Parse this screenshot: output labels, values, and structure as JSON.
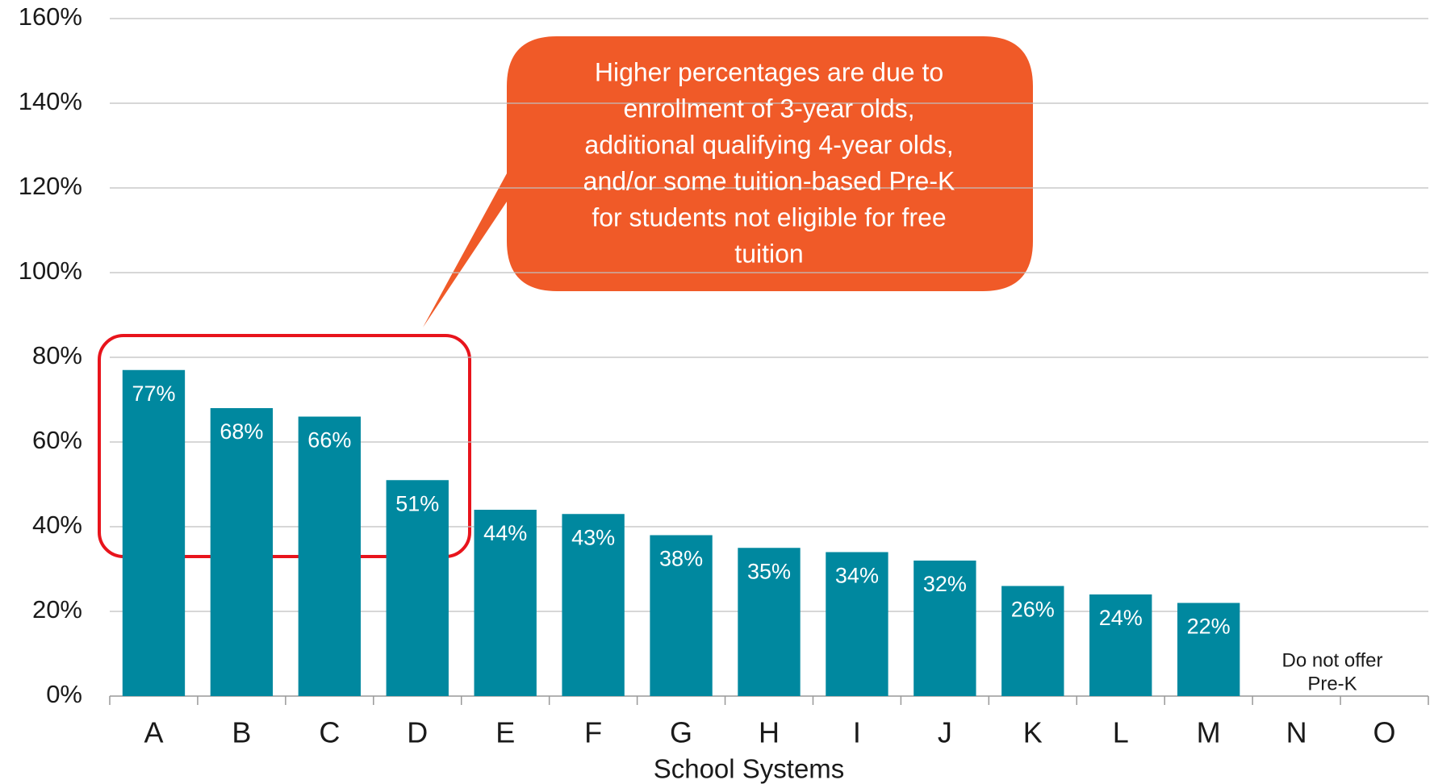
{
  "chart_data": {
    "type": "bar",
    "categories": [
      "A",
      "B",
      "C",
      "D",
      "E",
      "F",
      "G",
      "H",
      "I",
      "J",
      "K",
      "L",
      "M",
      "N",
      "O"
    ],
    "values": [
      77,
      68,
      66,
      51,
      44,
      43,
      38,
      35,
      34,
      32,
      26,
      24,
      22,
      null,
      null
    ],
    "value_labels": [
      "77%",
      "68%",
      "66%",
      "51%",
      "44%",
      "43%",
      "38%",
      "35%",
      "34%",
      "32%",
      "26%",
      "24%",
      "22%",
      null,
      null
    ],
    "color": "#00889f",
    "x_label": "School Systems",
    "ylim": [
      0,
      160
    ],
    "yticks": [
      {
        "value": 0,
        "label": "0%"
      },
      {
        "value": 20,
        "label": "20%"
      },
      {
        "value": 40,
        "label": "40%"
      },
      {
        "value": 60,
        "label": "60%"
      },
      {
        "value": 80,
        "label": "80%"
      },
      {
        "value": 100,
        "label": "100%"
      },
      {
        "value": 120,
        "label": "120%"
      },
      {
        "value": 140,
        "label": "140%"
      },
      {
        "value": 160,
        "label": "160%"
      }
    ],
    "grid": true,
    "callout_lines": [
      "Higher percentages are due to",
      "enrollment of 3-year olds,",
      "additional qualifying 4-year olds,",
      "and/or some tuition-based Pre-K",
      "for students not eligible for free",
      "tuition"
    ],
    "note_lines": [
      "Do not offer",
      "Pre-K"
    ]
  }
}
